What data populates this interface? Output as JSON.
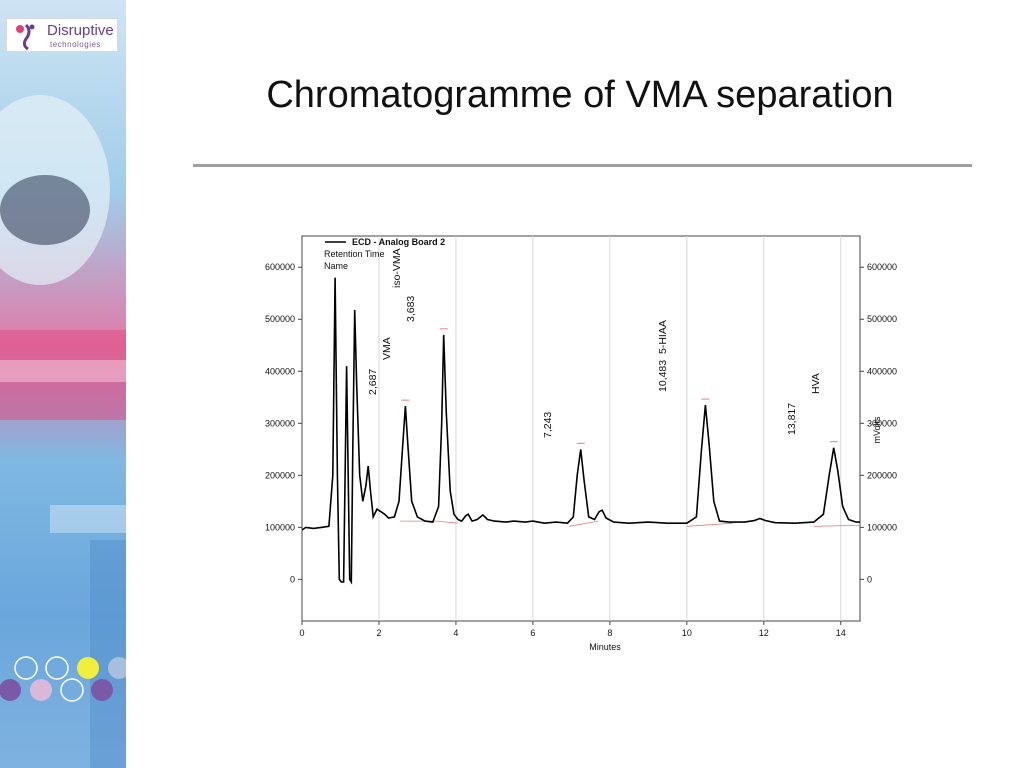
{
  "slide": {
    "title": "Chromatogramme of VMA separation"
  },
  "logo": {
    "brand": "Disruptive",
    "sub": "technologies"
  },
  "colors": {
    "trace": "#000000",
    "baseline": "#e08080",
    "rule": "#a0a0a0",
    "sidebar_blue": "#5aa0d8",
    "sidebar_pink": "#e0407a",
    "circle_yellow": "#f2ee3c",
    "circle_purple": "#7a5aa8"
  },
  "chart_data": {
    "type": "line",
    "title": "",
    "xlabel": "Minutes",
    "ylabel_right": "mVolts",
    "legend": {
      "series_name": "ECD - Analog Board 2",
      "field_labels": [
        "Retention Time",
        "Name"
      ],
      "placement": "top-left"
    },
    "xlim": [
      0,
      14.5
    ],
    "ylim": [
      -80000,
      660000
    ],
    "x_ticks": [
      "0",
      "2",
      "4",
      "6",
      "8",
      "10",
      "12",
      "14"
    ],
    "y_ticks": [
      "600000",
      "500000",
      "400000",
      "300000",
      "200000",
      "100000",
      "0"
    ],
    "y_ticks_right": [
      "600000",
      "500000",
      "400000",
      "300000",
      "200000",
      "100000",
      "0"
    ],
    "peaks": [
      {
        "name": "",
        "retention_time": "2,687",
        "x": 2.687,
        "height": 333000
      },
      {
        "name": "VMA",
        "retention_time": "",
        "x": 2.687,
        "height": 333000
      },
      {
        "name": "iso-VMA",
        "retention_time": "3,683",
        "x": 3.683,
        "height": 470000
      },
      {
        "name": "",
        "retention_time": "7,243",
        "x": 7.243,
        "height": 250000
      },
      {
        "name": "5-HIAA",
        "retention_time": "10,483",
        "x": 10.483,
        "height": 335000
      },
      {
        "name": "HVA",
        "retention_time": "13,817",
        "x": 13.817,
        "height": 253000
      }
    ],
    "trace_points": [
      [
        0.0,
        95000
      ],
      [
        0.1,
        100000
      ],
      [
        0.3,
        98000
      ],
      [
        0.5,
        100000
      ],
      [
        0.7,
        102000
      ],
      [
        0.8,
        200000
      ],
      [
        0.86,
        580000
      ],
      [
        0.92,
        200000
      ],
      [
        0.97,
        0
      ],
      [
        1.02,
        -5000
      ],
      [
        1.08,
        -5000
      ],
      [
        1.12,
        200000
      ],
      [
        1.16,
        410000
      ],
      [
        1.2,
        200000
      ],
      [
        1.24,
        0
      ],
      [
        1.28,
        -5000
      ],
      [
        1.32,
        250000
      ],
      [
        1.37,
        518000
      ],
      [
        1.42,
        380000
      ],
      [
        1.5,
        200000
      ],
      [
        1.58,
        150000
      ],
      [
        1.66,
        180000
      ],
      [
        1.72,
        218000
      ],
      [
        1.78,
        170000
      ],
      [
        1.85,
        120000
      ],
      [
        1.95,
        135000
      ],
      [
        2.05,
        130000
      ],
      [
        2.15,
        125000
      ],
      [
        2.25,
        118000
      ],
      [
        2.4,
        120000
      ],
      [
        2.52,
        150000
      ],
      [
        2.62,
        260000
      ],
      [
        2.687,
        333000
      ],
      [
        2.75,
        260000
      ],
      [
        2.85,
        150000
      ],
      [
        3.0,
        120000
      ],
      [
        3.2,
        112000
      ],
      [
        3.4,
        110000
      ],
      [
        3.55,
        140000
      ],
      [
        3.63,
        300000
      ],
      [
        3.683,
        470000
      ],
      [
        3.75,
        320000
      ],
      [
        3.85,
        170000
      ],
      [
        3.95,
        125000
      ],
      [
        4.05,
        115000
      ],
      [
        4.15,
        112000
      ],
      [
        4.25,
        122000
      ],
      [
        4.32,
        125000
      ],
      [
        4.42,
        112000
      ],
      [
        4.55,
        115000
      ],
      [
        4.7,
        124000
      ],
      [
        4.82,
        115000
      ],
      [
        5.0,
        112000
      ],
      [
        5.3,
        110000
      ],
      [
        5.5,
        112000
      ],
      [
        5.8,
        110000
      ],
      [
        6.0,
        112000
      ],
      [
        6.3,
        108000
      ],
      [
        6.6,
        110000
      ],
      [
        6.9,
        108000
      ],
      [
        7.05,
        120000
      ],
      [
        7.15,
        200000
      ],
      [
        7.243,
        250000
      ],
      [
        7.33,
        190000
      ],
      [
        7.45,
        120000
      ],
      [
        7.6,
        115000
      ],
      [
        7.72,
        130000
      ],
      [
        7.8,
        133000
      ],
      [
        7.9,
        118000
      ],
      [
        8.1,
        110000
      ],
      [
        8.5,
        108000
      ],
      [
        9.0,
        110000
      ],
      [
        9.5,
        108000
      ],
      [
        10.0,
        108000
      ],
      [
        10.25,
        120000
      ],
      [
        10.38,
        250000
      ],
      [
        10.483,
        335000
      ],
      [
        10.58,
        260000
      ],
      [
        10.7,
        150000
      ],
      [
        10.85,
        112000
      ],
      [
        11.1,
        110000
      ],
      [
        11.5,
        110000
      ],
      [
        11.75,
        113000
      ],
      [
        11.9,
        117000
      ],
      [
        12.05,
        113000
      ],
      [
        12.3,
        109000
      ],
      [
        12.8,
        108000
      ],
      [
        13.3,
        110000
      ],
      [
        13.55,
        125000
      ],
      [
        13.7,
        200000
      ],
      [
        13.817,
        253000
      ],
      [
        13.92,
        210000
      ],
      [
        14.05,
        140000
      ],
      [
        14.2,
        115000
      ],
      [
        14.4,
        110000
      ],
      [
        14.5,
        110000
      ]
    ],
    "baseline_segments": [
      [
        [
          2.55,
          112000
        ],
        [
          3.5,
          112000
        ]
      ],
      [
        [
          3.5,
          112000
        ],
        [
          4.05,
          108000
        ]
      ],
      [
        [
          6.95,
          102000
        ],
        [
          7.7,
          112000
        ]
      ],
      [
        [
          10.0,
          102000
        ],
        [
          11.2,
          108000
        ]
      ],
      [
        [
          13.3,
          102000
        ],
        [
          14.5,
          104000
        ]
      ]
    ],
    "grid": "vertical-only"
  }
}
